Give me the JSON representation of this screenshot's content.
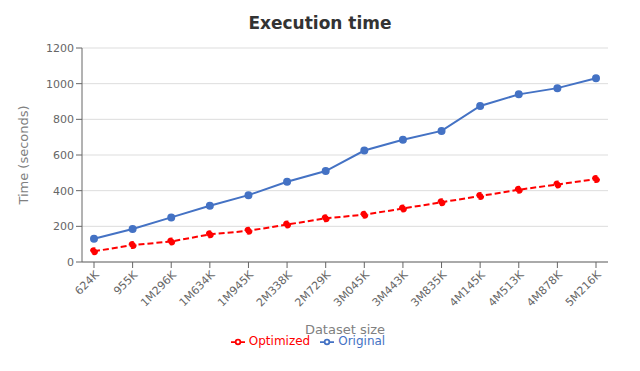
{
  "chart_data": {
    "type": "line",
    "title": "Execution time",
    "x_label": "Dataset size",
    "y_label": "Time (seconds)",
    "categories": [
      "624K",
      "955K",
      "1M296K",
      "1M634K",
      "1M945K",
      "2M338K",
      "2M729K",
      "3M045K",
      "3M443K",
      "3M835K",
      "4M145K",
      "4M513K",
      "4M878K",
      "5M216K"
    ],
    "series": [
      {
        "name": "Original",
        "color": "#4472C4",
        "marker": "circle",
        "line_style": "solid",
        "values": [
          130,
          185,
          250,
          315,
          375,
          450,
          510,
          625,
          685,
          735,
          875,
          940,
          975,
          1030
        ]
      },
      {
        "name": "Optimized",
        "color": "#FF0000",
        "marker": "circle",
        "line_style": "dashed",
        "values": [
          60,
          95,
          115,
          155,
          175,
          210,
          245,
          265,
          300,
          335,
          370,
          405,
          435,
          465
        ]
      }
    ],
    "ylim": [
      0,
      1200
    ],
    "yticks": [
      0,
      200,
      400,
      600,
      800,
      1000,
      1200
    ],
    "grid": true,
    "legend": "bottom"
  }
}
